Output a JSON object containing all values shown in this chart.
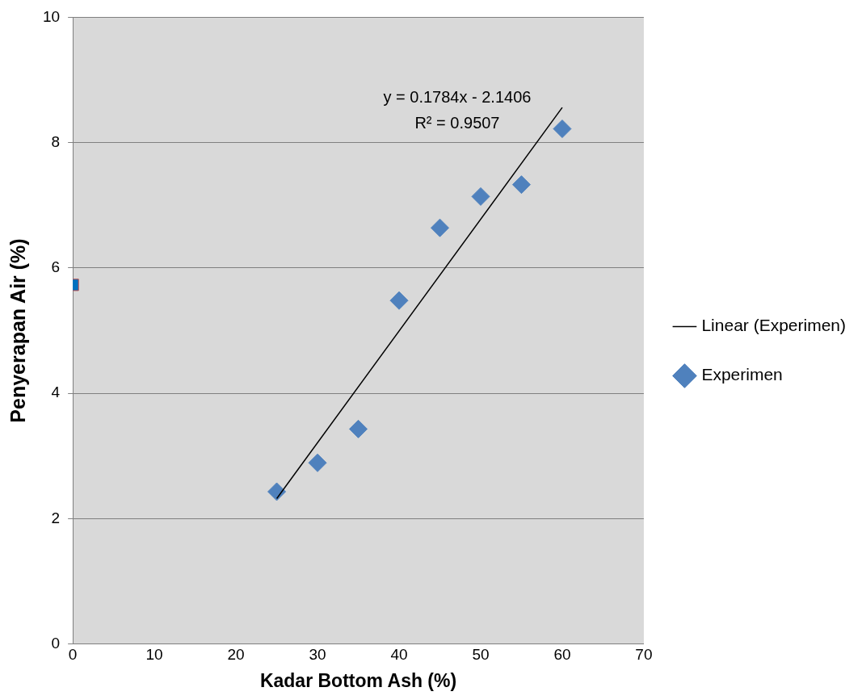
{
  "chart_data": {
    "type": "scatter",
    "xlabel": "Kadar Bottom Ash (%)",
    "ylabel": "Penyerapan Air (%)",
    "xlim": [
      0,
      70
    ],
    "xticks": [
      0,
      10,
      20,
      30,
      40,
      50,
      60,
      70
    ],
    "ylim": [
      0,
      10
    ],
    "yticks": [
      0,
      2,
      4,
      6,
      8,
      10
    ],
    "grid": "y",
    "legend": "right",
    "series": [
      {
        "name": "Experimen",
        "type": "scatter",
        "marker": "diamond",
        "color": "#4f81bd",
        "x": [
          25,
          30,
          35,
          40,
          45,
          50,
          55,
          60
        ],
        "values": [
          2.43,
          2.89,
          3.43,
          5.48,
          6.64,
          7.14,
          7.33,
          8.22
        ]
      },
      {
        "type": "scatter",
        "marker": "square",
        "color": "#0070c0",
        "x": [
          0
        ],
        "values": [
          5.73
        ]
      },
      {
        "name": "Linear (Experimen)",
        "type": "line",
        "marker": "none",
        "line_style": "solid",
        "color": "#000000",
        "x": [
          25,
          60
        ],
        "values": [
          2.32,
          8.56
        ]
      }
    ],
    "annotations": [
      "y = 0.1784x - 2.1406",
      "R² = 0.9507"
    ]
  }
}
